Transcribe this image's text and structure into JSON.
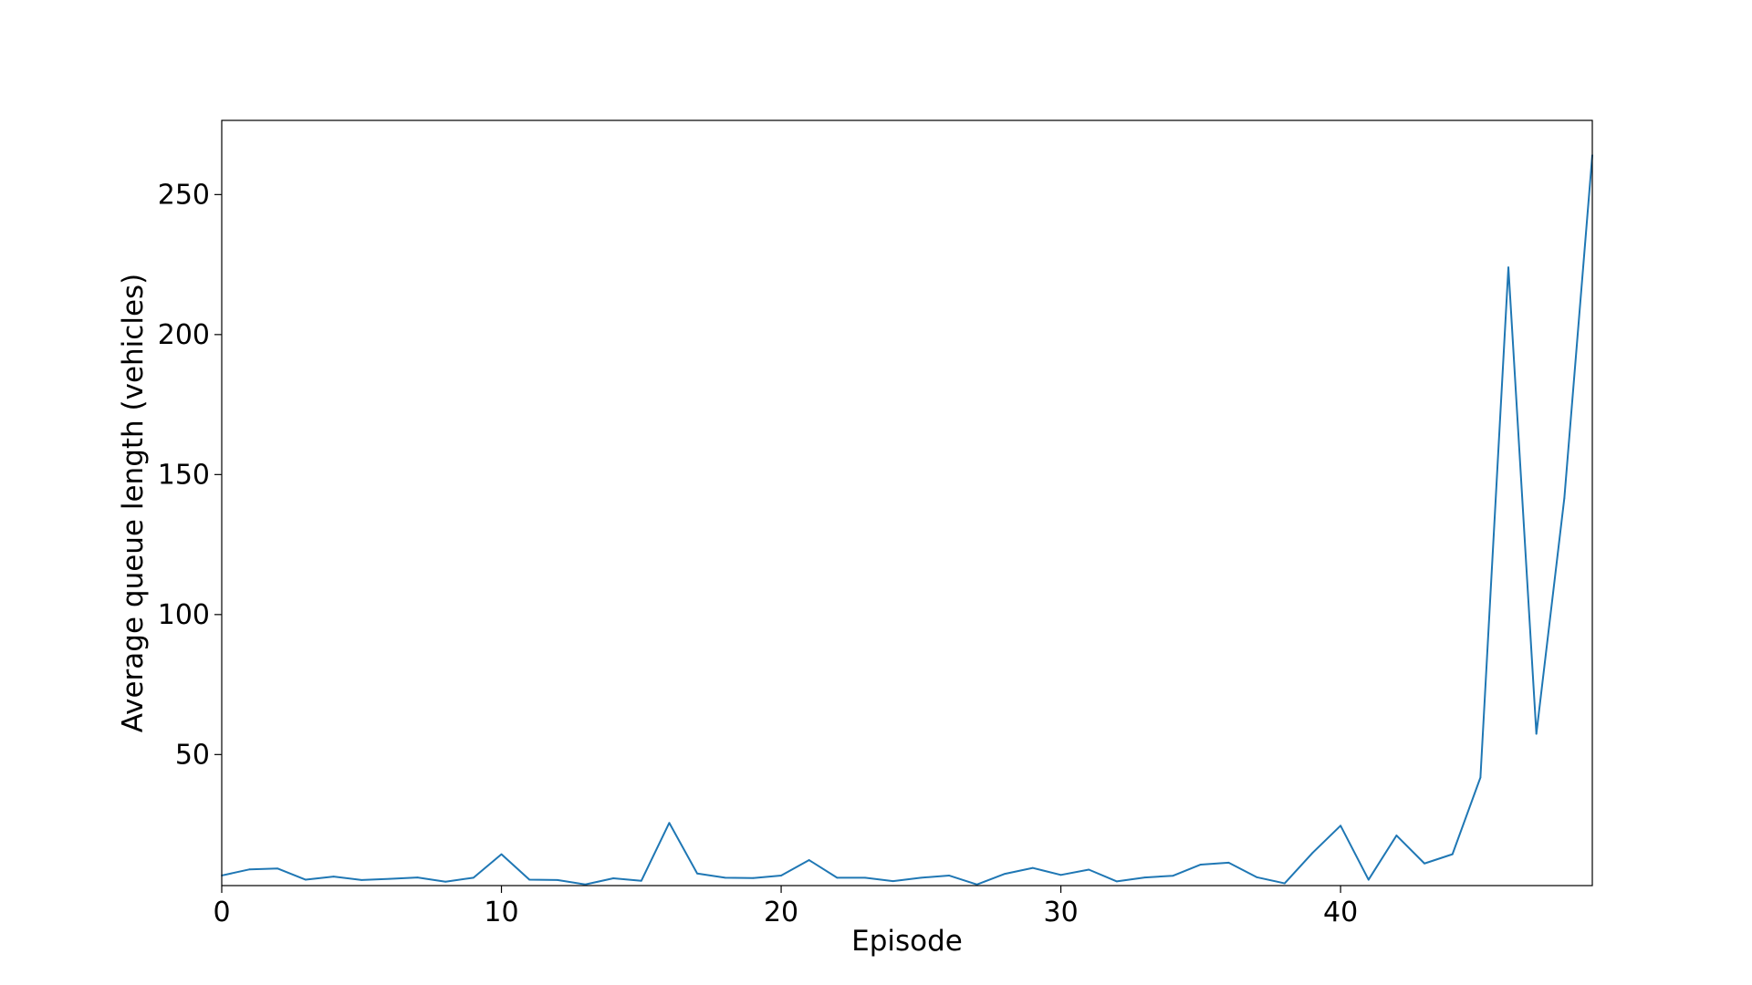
{
  "chart_data": {
    "type": "line",
    "title": "",
    "xlabel": "Episode",
    "ylabel": "Average queue length (vehicles)",
    "xlim": [
      0,
      49
    ],
    "ylim": [
      3.2,
      276.5
    ],
    "xticks": [
      0,
      10,
      20,
      30,
      40
    ],
    "yticks": [
      50,
      100,
      150,
      200,
      250
    ],
    "grid": false,
    "legend": "none",
    "series": [
      {
        "color": "#1f77b4",
        "x": [
          0,
          1,
          2,
          3,
          4,
          5,
          6,
          7,
          8,
          9,
          10,
          11,
          12,
          13,
          14,
          15,
          16,
          17,
          18,
          19,
          20,
          21,
          22,
          23,
          24,
          25,
          26,
          27,
          28,
          29,
          30,
          31,
          32,
          33,
          34,
          35,
          36,
          37,
          38,
          39,
          40,
          41,
          42,
          43,
          44,
          45,
          46,
          47,
          48,
          49
        ],
        "values": [
          6.8,
          9.0,
          9.3,
          5.3,
          6.4,
          5.2,
          5.6,
          6.1,
          4.6,
          6.0,
          14.4,
          5.3,
          5.2,
          3.6,
          5.8,
          4.9,
          25.6,
          7.5,
          6.0,
          5.9,
          6.8,
          12.3,
          6.0,
          6.0,
          4.8,
          6.0,
          6.8,
          3.6,
          7.4,
          9.5,
          7.0,
          8.9,
          4.7,
          6.1,
          6.7,
          10.7,
          11.4,
          6.2,
          4.0,
          14.9,
          24.6,
          5.3,
          21.1,
          11.1,
          14.4,
          41.8,
          224.0,
          57.4,
          141.6,
          264.1
        ]
      }
    ]
  }
}
